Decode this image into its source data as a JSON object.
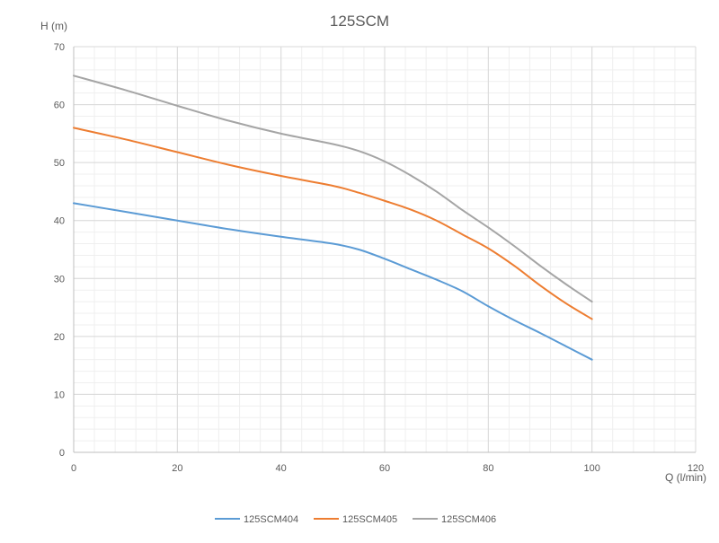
{
  "chart_data": {
    "type": "line",
    "title": "125SCM",
    "xlabel": "Q (l/min)",
    "ylabel": "H (m)",
    "xlim": [
      0,
      120
    ],
    "ylim": [
      0,
      70
    ],
    "x_ticks": [
      0,
      20,
      40,
      60,
      80,
      100,
      120
    ],
    "y_ticks": [
      0,
      10,
      20,
      30,
      40,
      50,
      60,
      70
    ],
    "grid": true,
    "legend_position": "bottom",
    "series": [
      {
        "name": "125SCM404",
        "color": "#5B9BD5",
        "x": [
          0,
          10,
          20,
          30,
          40,
          50,
          55,
          60,
          65,
          70,
          75,
          80,
          85,
          90,
          95,
          100
        ],
        "y": [
          43,
          41.5,
          40,
          38.5,
          37.2,
          36,
          35,
          33.4,
          31.6,
          29.8,
          27.8,
          25.2,
          22.8,
          20.6,
          18.3,
          16
        ]
      },
      {
        "name": "125SCM405",
        "color": "#ED7D31",
        "x": [
          0,
          10,
          20,
          30,
          40,
          50,
          55,
          60,
          65,
          70,
          75,
          80,
          85,
          90,
          95,
          100
        ],
        "y": [
          56,
          54,
          51.8,
          49.6,
          47.7,
          46,
          44.8,
          43.4,
          41.9,
          40,
          37.6,
          35.2,
          32.2,
          28.8,
          25.7,
          23
        ]
      },
      {
        "name": "125SCM406",
        "color": "#A5A5A5",
        "x": [
          0,
          10,
          20,
          30,
          40,
          50,
          55,
          60,
          65,
          70,
          75,
          80,
          85,
          90,
          95,
          100
        ],
        "y": [
          65,
          62.5,
          59.8,
          57.2,
          55,
          53.2,
          52,
          50.2,
          47.8,
          45,
          41.8,
          38.8,
          35.6,
          32.2,
          29,
          26
        ]
      }
    ]
  }
}
